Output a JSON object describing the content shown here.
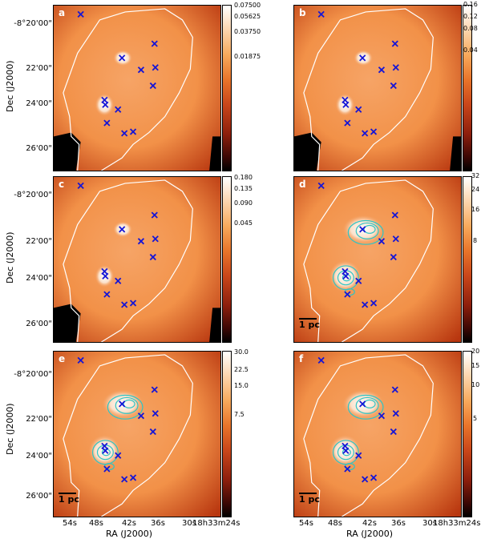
{
  "panels": [
    {
      "label": "a",
      "colorbar_ticks": [
        "0.07500",
        "0.05625",
        "0.03750",
        "0.01875"
      ],
      "contours": false,
      "scale": ""
    },
    {
      "label": "b",
      "colorbar_ticks": [
        "0.16",
        "0.12",
        "0.08",
        "0.04"
      ],
      "contours": false,
      "scale": ""
    },
    {
      "label": "c",
      "colorbar_ticks": [
        "0.180",
        "0.135",
        "0.090",
        "0.045"
      ],
      "contours": false,
      "scale": ""
    },
    {
      "label": "d",
      "colorbar_ticks": [
        "32",
        "24",
        "16",
        "8"
      ],
      "contours": true,
      "scale": "1 pc"
    },
    {
      "label": "e",
      "colorbar_ticks": [
        "30.0",
        "22.5",
        "15.0",
        "7.5"
      ],
      "contours": true,
      "scale": "1 pc"
    },
    {
      "label": "f",
      "colorbar_ticks": [
        "20",
        "15",
        "10",
        "5"
      ],
      "contours": true,
      "scale": "1 pc"
    }
  ],
  "axes": {
    "ylabel": "Dec (J2000)",
    "xlabel": "RA (J2000)",
    "yticks": [
      "-8°20'00\"",
      "22'00\"",
      "24'00\"",
      "26'00\""
    ],
    "xticks": [
      "54s",
      "48s",
      "42s",
      "36s",
      "30s",
      "18h33m24s"
    ]
  },
  "colors": {
    "map_mid": "#f29148",
    "map_dark": "#b8360f",
    "marker": "#1515d6",
    "contour": "#2fc4c4",
    "outline": "#ffffff"
  }
}
